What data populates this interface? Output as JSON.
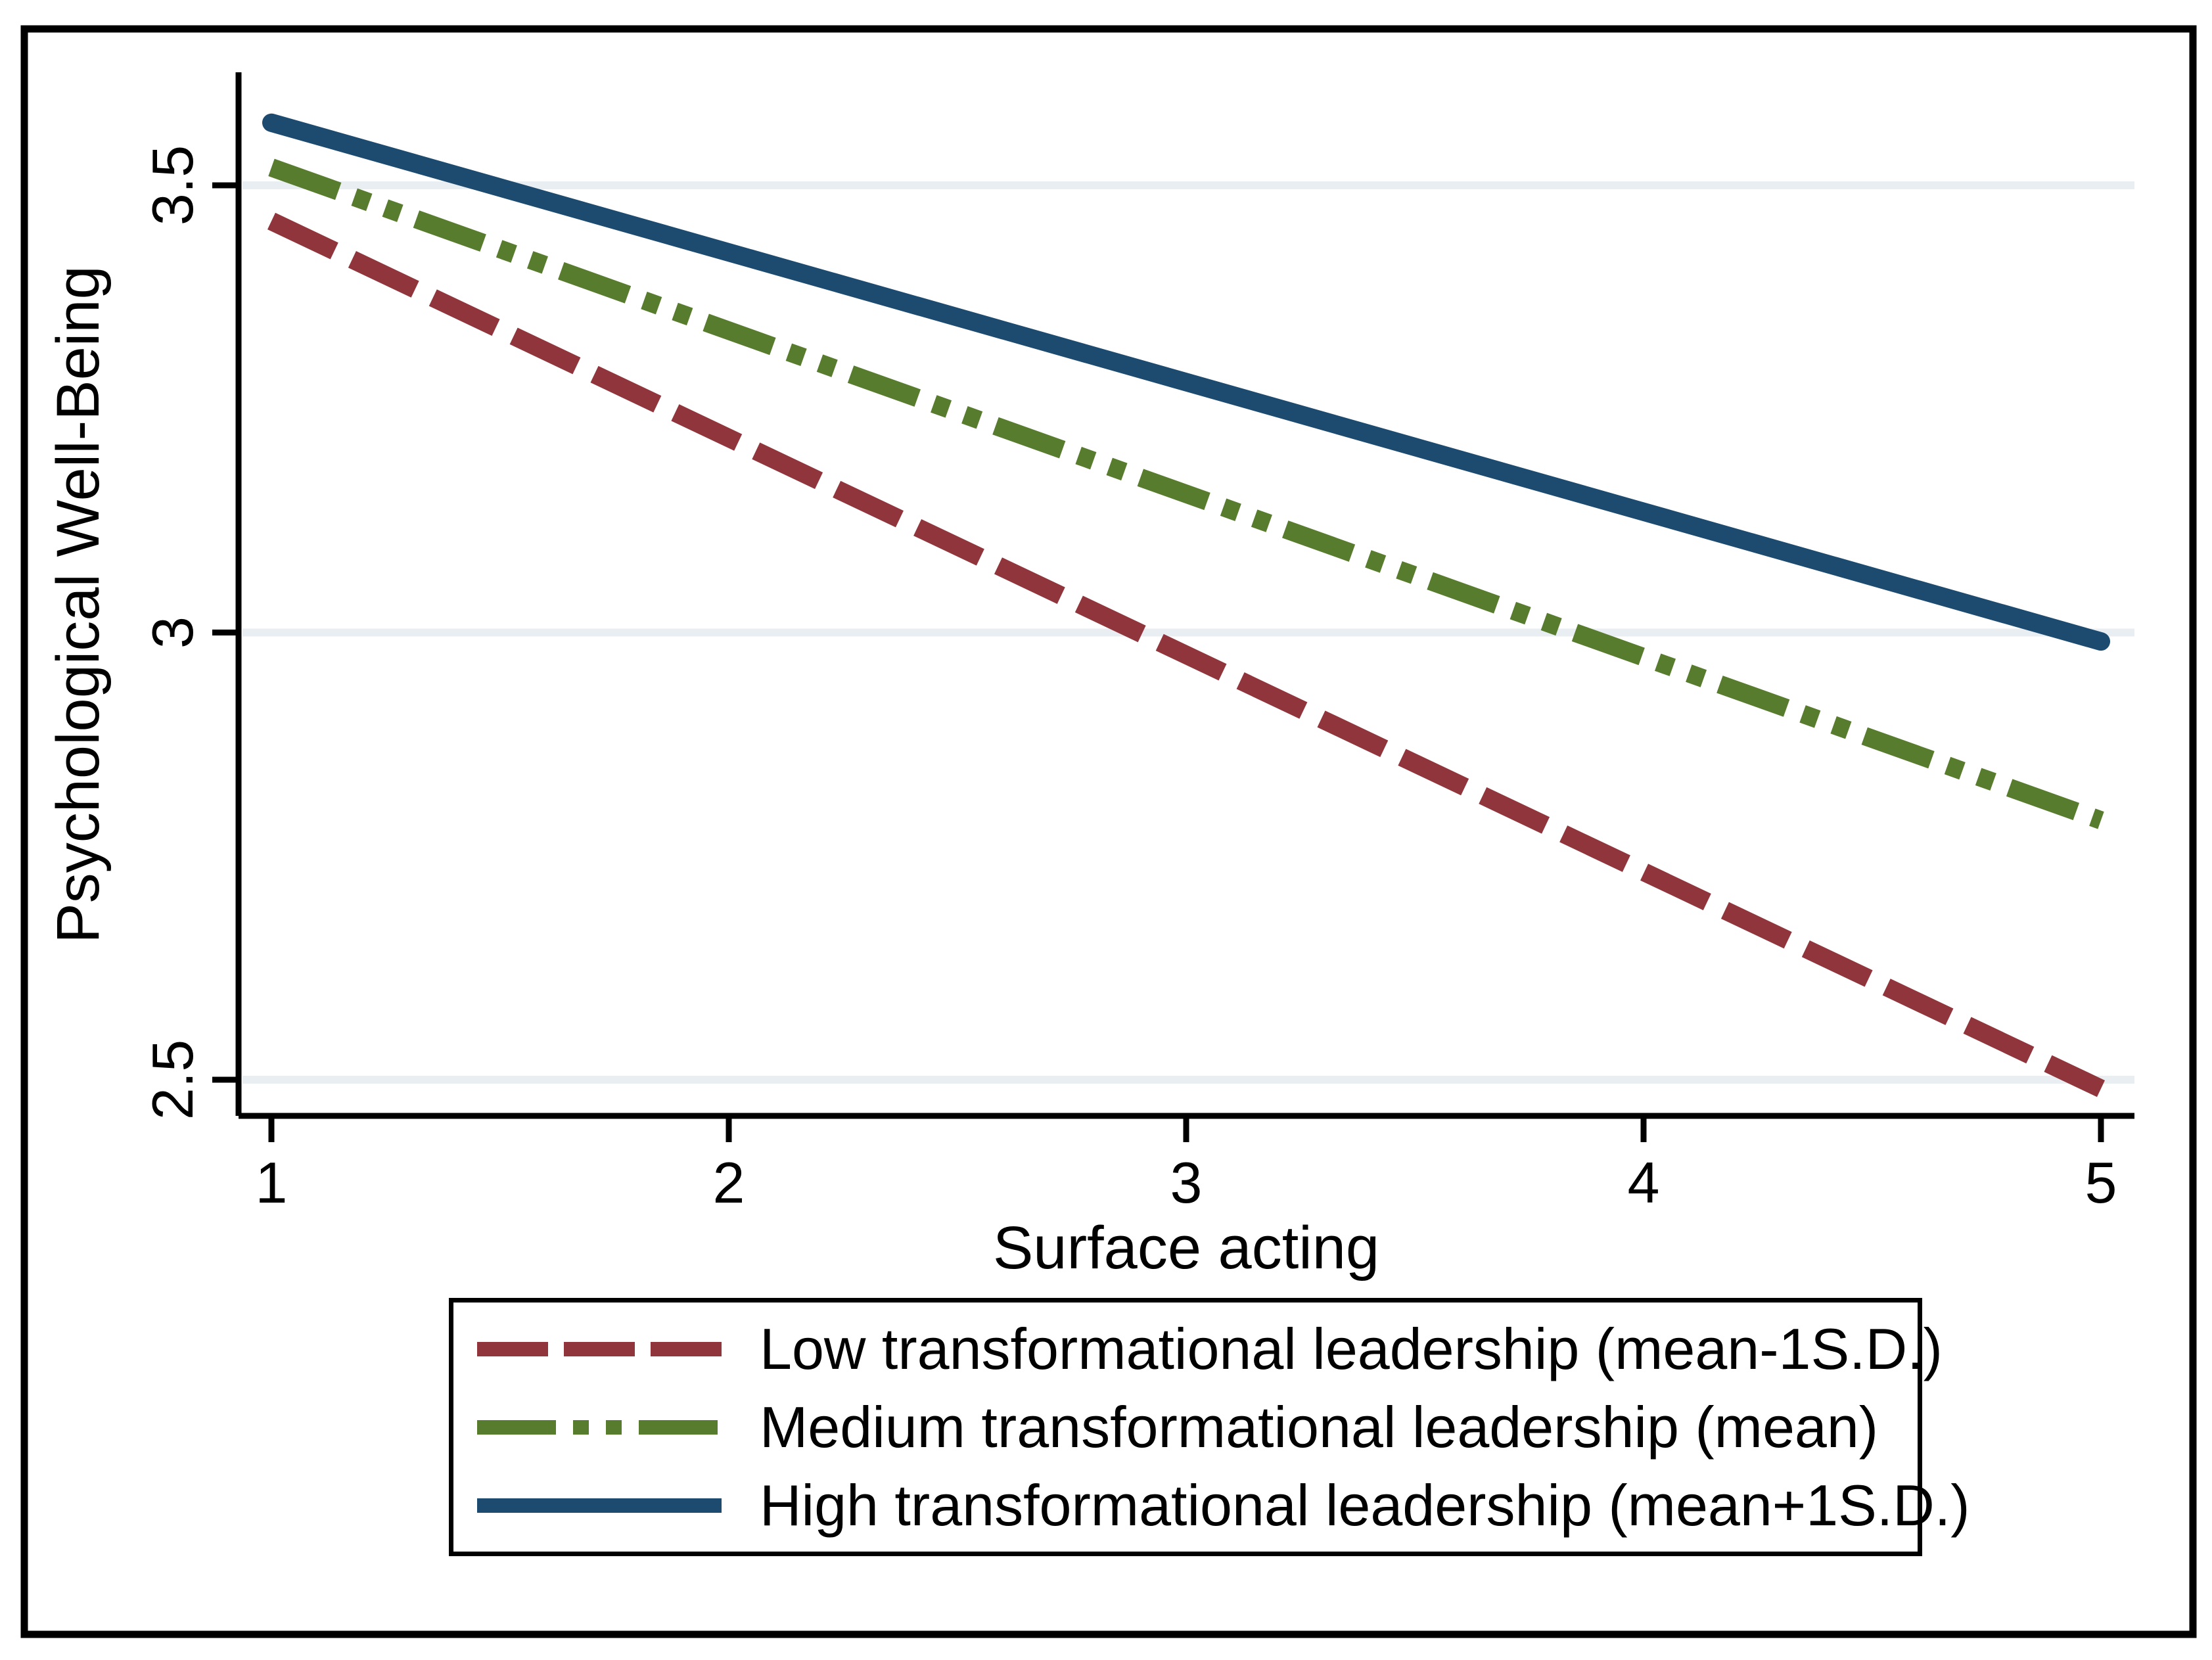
{
  "figure": {
    "background_color": "#ffffff",
    "border_color": "#000000"
  },
  "chart_data": {
    "type": "line",
    "title": "",
    "xlabel": "Surface acting",
    "ylabel": "Psychological Well-Being",
    "xlim": [
      0.93,
      5.07
    ],
    "ylim": [
      2.46,
      3.63
    ],
    "x_ticks": [
      1,
      2,
      3,
      4,
      5
    ],
    "x_tick_labels": [
      "1",
      "2",
      "3",
      "4",
      "5"
    ],
    "y_ticks": [
      3.5,
      3,
      2.5
    ],
    "y_tick_labels": [
      "3.5",
      "3",
      "2.5"
    ],
    "grid": "horizontal gridlines at y ticks only",
    "gridline_color": "#e8eef2",
    "legend_position": "bottom",
    "series": [
      {
        "name": "Low transformational leadership (mean-1S.D.)",
        "color": "#90353b",
        "line_style": "long-dash",
        "x": [
          1,
          5
        ],
        "y": [
          3.46,
          2.49
        ]
      },
      {
        "name": "Medium transformational leadership (mean)",
        "color": "#587c2e",
        "line_style": "dash-dot-dot",
        "x": [
          1,
          5
        ],
        "y": [
          3.52,
          2.79
        ]
      },
      {
        "name": "High transformational leadership (mean+1S.D.)",
        "color": "#1d4b70",
        "line_style": "solid",
        "x": [
          1,
          5
        ],
        "y": [
          3.57,
          2.99
        ]
      }
    ]
  }
}
